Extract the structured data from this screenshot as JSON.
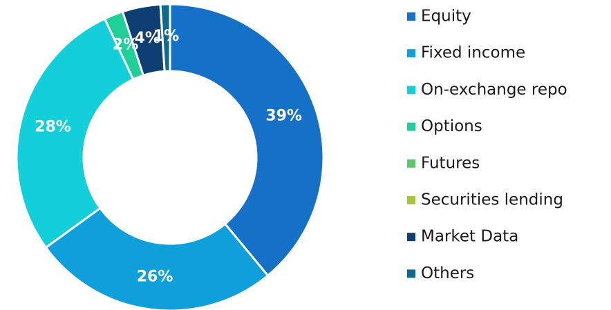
{
  "chart_data": {
    "type": "donut",
    "categories": [
      "Equity",
      "Fixed income",
      "On-exchange repo",
      "Options",
      "Futures",
      "Securities lending",
      "Market Data",
      "Others"
    ],
    "values": [
      39,
      26,
      28,
      2,
      0,
      0,
      4,
      1
    ],
    "value_labels": [
      "39%",
      "26%",
      "28%",
      "2%",
      null,
      null,
      "4%",
      "1%"
    ],
    "colors": [
      "#1570c8",
      "#0fa0db",
      "#12cfd9",
      "#1ecf9a",
      "#5cc86a",
      "#a3c83c",
      "#0d3f73",
      "#0d6a8c"
    ],
    "legend": "right"
  }
}
